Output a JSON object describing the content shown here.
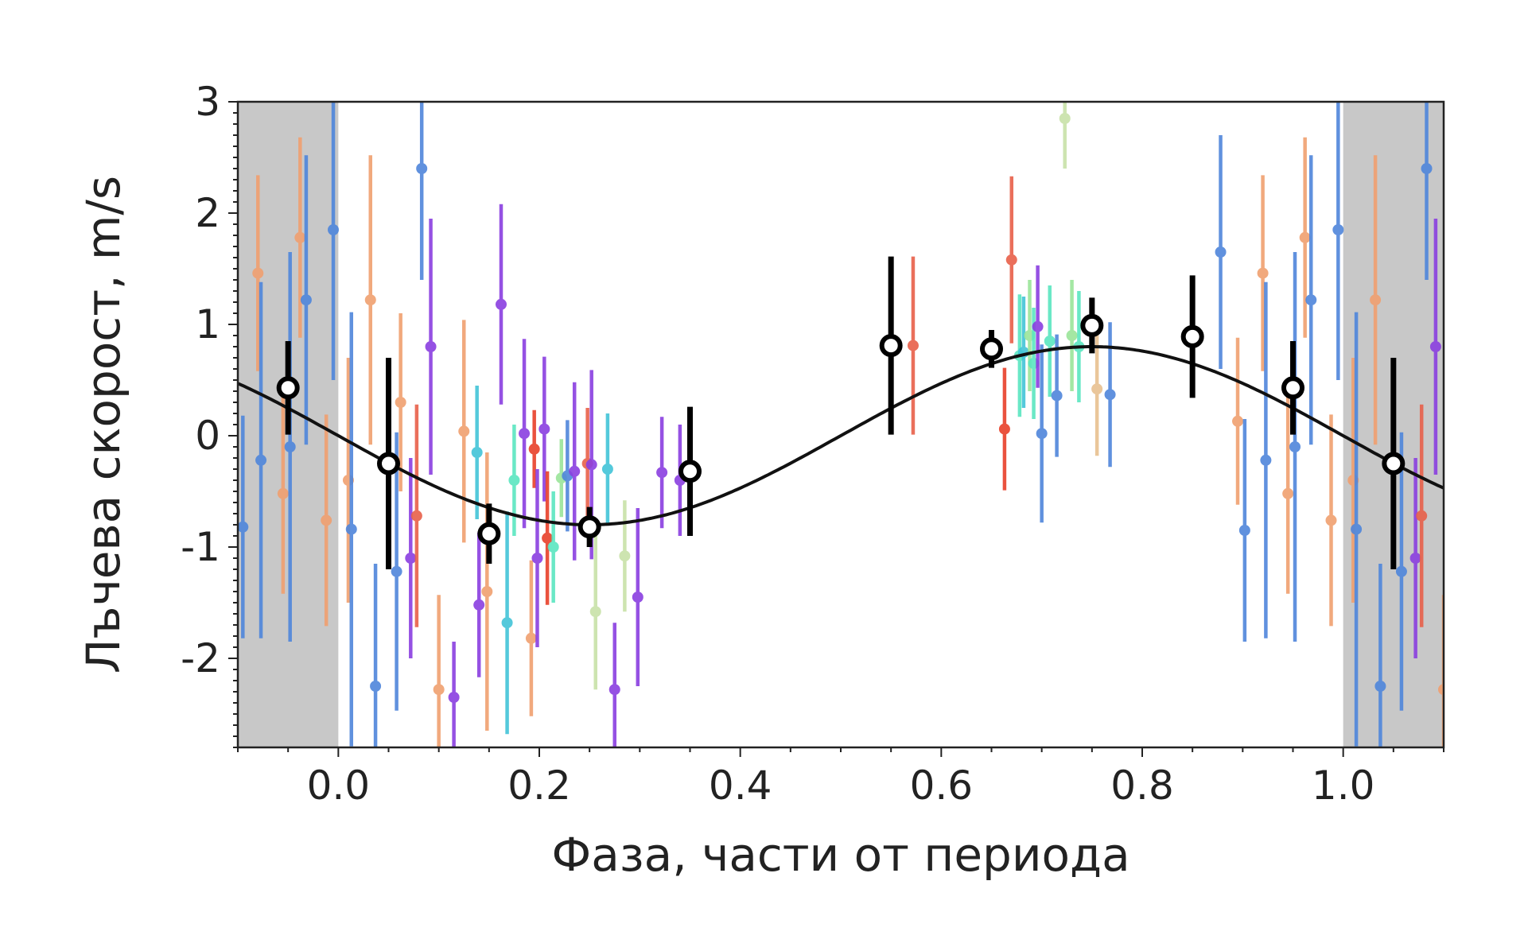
{
  "chart_data": {
    "type": "scatter",
    "xlabel": "Фаза, части от периода",
    "ylabel": "Лъчева скорост, m/s",
    "xlim": [
      -0.1,
      1.1
    ],
    "ylim": [
      -2.8,
      3
    ],
    "x_ticks": [
      "0.0",
      "0.2",
      "0.4",
      "0.6",
      "0.8",
      "1.0"
    ],
    "x_tick_values": [
      0.0,
      0.2,
      0.4,
      0.6,
      0.8,
      1.0
    ],
    "y_ticks": [
      "-2",
      "-1",
      "0",
      "1",
      "2",
      "3"
    ],
    "y_tick_values": [
      -2,
      -1,
      0,
      1,
      2,
      3
    ],
    "grid": false,
    "shaded_regions": [
      {
        "x_from": -0.1,
        "x_to": 0.0,
        "color": "#c8c8c8"
      },
      {
        "x_from": 1.0,
        "x_to": 1.1,
        "color": "#c8c8c8"
      }
    ],
    "model_curve": {
      "function": "sine",
      "amplitude": 0.8,
      "phase_of_minimum": 0.25,
      "offset": 0.0,
      "color": "#111111"
    },
    "binned_points": [
      {
        "x": -0.05,
        "y": 0.43,
        "err": 0.42
      },
      {
        "x": 0.05,
        "y": -0.25,
        "err": 0.95
      },
      {
        "x": 0.15,
        "y": -0.88,
        "err": 0.27
      },
      {
        "x": 0.25,
        "y": -0.82,
        "err": 0.18
      },
      {
        "x": 0.35,
        "y": -0.32,
        "err": 0.58
      },
      {
        "x": 0.55,
        "y": 0.81,
        "err": 0.8
      },
      {
        "x": 0.65,
        "y": 0.78,
        "err": 0.17
      },
      {
        "x": 0.75,
        "y": 0.99,
        "err": 0.25
      },
      {
        "x": 0.85,
        "y": 0.89,
        "err": 0.55
      },
      {
        "x": 0.95,
        "y": 0.43,
        "err": 0.42
      },
      {
        "x": 1.05,
        "y": -0.25,
        "err": 0.95
      }
    ],
    "raw_points": [
      {
        "x": -0.095,
        "y": -0.82,
        "err": 1.0,
        "color": "#4f86db"
      },
      {
        "x": -0.08,
        "y": 1.46,
        "err": 0.88,
        "color": "#f0a070"
      },
      {
        "x": -0.077,
        "y": -0.22,
        "err": 1.6,
        "color": "#4f86db"
      },
      {
        "x": -0.055,
        "y": -0.52,
        "err": 0.9,
        "color": "#f0a070"
      },
      {
        "x": -0.048,
        "y": -0.1,
        "err": 1.75,
        "color": "#4f86db"
      },
      {
        "x": -0.038,
        "y": 1.78,
        "err": 0.9,
        "color": "#f0a070"
      },
      {
        "x": -0.032,
        "y": 1.22,
        "err": 1.3,
        "color": "#4f86db"
      },
      {
        "x": -0.012,
        "y": -0.76,
        "err": 0.95,
        "color": "#f0a070"
      },
      {
        "x": -0.005,
        "y": 1.85,
        "err": 1.35,
        "color": "#4f86db"
      },
      {
        "x": 0.01,
        "y": -0.4,
        "err": 1.1,
        "color": "#f0a070"
      },
      {
        "x": 0.013,
        "y": -0.84,
        "err": 1.95,
        "color": "#4f86db"
      },
      {
        "x": 0.032,
        "y": 1.22,
        "err": 1.3,
        "color": "#f0a070"
      },
      {
        "x": 0.037,
        "y": -2.25,
        "err": 1.1,
        "color": "#4f86db"
      },
      {
        "x": 0.058,
        "y": -1.22,
        "err": 1.25,
        "color": "#4f86db"
      },
      {
        "x": 0.062,
        "y": 0.3,
        "err": 0.8,
        "color": "#f0a070"
      },
      {
        "x": 0.072,
        "y": -1.1,
        "err": 0.9,
        "color": "#8a3fe0"
      },
      {
        "x": 0.078,
        "y": -0.72,
        "err": 1.0,
        "color": "#e8604a"
      },
      {
        "x": 0.083,
        "y": 2.4,
        "err": 1.0,
        "color": "#4f86db"
      },
      {
        "x": 0.092,
        "y": 0.8,
        "err": 1.15,
        "color": "#8a3fe0"
      },
      {
        "x": 0.1,
        "y": -2.28,
        "err": 0.85,
        "color": "#f0a070"
      },
      {
        "x": 0.115,
        "y": -2.35,
        "err": 0.5,
        "color": "#8a3fe0"
      },
      {
        "x": 0.125,
        "y": 0.04,
        "err": 1.0,
        "color": "#f0a070"
      },
      {
        "x": 0.138,
        "y": -0.15,
        "err": 0.6,
        "color": "#42c4d8"
      },
      {
        "x": 0.14,
        "y": -1.52,
        "err": 0.65,
        "color": "#8a3fe0"
      },
      {
        "x": 0.148,
        "y": -1.4,
        "err": 1.25,
        "color": "#f0a070"
      },
      {
        "x": 0.162,
        "y": 1.18,
        "err": 0.9,
        "color": "#8a3fe0"
      },
      {
        "x": 0.168,
        "y": -1.68,
        "err": 1.0,
        "color": "#42c4d8"
      },
      {
        "x": 0.175,
        "y": -0.4,
        "err": 0.5,
        "color": "#5ae6c0"
      },
      {
        "x": 0.185,
        "y": 0.02,
        "err": 0.85,
        "color": "#8a3fe0"
      },
      {
        "x": 0.192,
        "y": -1.82,
        "err": 0.7,
        "color": "#f0a070"
      },
      {
        "x": 0.195,
        "y": -0.12,
        "err": 0.35,
        "color": "#e8402a"
      },
      {
        "x": 0.198,
        "y": -1.1,
        "err": 0.8,
        "color": "#8a3fe0"
      },
      {
        "x": 0.205,
        "y": 0.06,
        "err": 0.65,
        "color": "#8a3fe0"
      },
      {
        "x": 0.208,
        "y": -0.92,
        "err": 0.6,
        "color": "#e8402a"
      },
      {
        "x": 0.214,
        "y": -1.0,
        "err": 0.5,
        "color": "#5ae6c0"
      },
      {
        "x": 0.222,
        "y": -0.38,
        "err": 0.35,
        "color": "#9be59a"
      },
      {
        "x": 0.228,
        "y": -0.36,
        "err": 0.5,
        "color": "#4f86db"
      },
      {
        "x": 0.235,
        "y": -0.32,
        "err": 0.8,
        "color": "#8a3fe0"
      },
      {
        "x": 0.248,
        "y": -0.25,
        "err": 0.5,
        "color": "#e8604a"
      },
      {
        "x": 0.252,
        "y": -0.26,
        "err": 0.85,
        "color": "#8a3fe0"
      },
      {
        "x": 0.256,
        "y": -1.58,
        "err": 0.7,
        "color": "#c8e2a8"
      },
      {
        "x": 0.268,
        "y": -0.3,
        "err": 0.5,
        "color": "#42c4d8"
      },
      {
        "x": 0.275,
        "y": -2.28,
        "err": 0.6,
        "color": "#8a3fe0"
      },
      {
        "x": 0.285,
        "y": -1.08,
        "err": 0.5,
        "color": "#c8e2a8"
      },
      {
        "x": 0.298,
        "y": -1.45,
        "err": 0.8,
        "color": "#8a3fe0"
      },
      {
        "x": 0.322,
        "y": -0.33,
        "err": 0.5,
        "color": "#8a3fe0"
      },
      {
        "x": 0.34,
        "y": -0.4,
        "err": 0.5,
        "color": "#8a3fe0"
      },
      {
        "x": 0.572,
        "y": 0.81,
        "err": 0.8,
        "color": "#e8604a"
      },
      {
        "x": 0.663,
        "y": 0.06,
        "err": 0.55,
        "color": "#e8402a"
      },
      {
        "x": 0.67,
        "y": 1.58,
        "err": 0.75,
        "color": "#e8604a"
      },
      {
        "x": 0.678,
        "y": 0.72,
        "err": 0.55,
        "color": "#5ae6c0"
      },
      {
        "x": 0.682,
        "y": 0.75,
        "err": 0.5,
        "color": "#42c4d8"
      },
      {
        "x": 0.688,
        "y": 0.9,
        "err": 0.5,
        "color": "#9be59a"
      },
      {
        "x": 0.692,
        "y": 0.65,
        "err": 0.5,
        "color": "#5ae6c0"
      },
      {
        "x": 0.696,
        "y": 0.98,
        "err": 0.55,
        "color": "#8a3fe0"
      },
      {
        "x": 0.7,
        "y": 0.02,
        "err": 0.8,
        "color": "#4f86db"
      },
      {
        "x": 0.708,
        "y": 0.85,
        "err": 0.5,
        "color": "#5ae6c0"
      },
      {
        "x": 0.715,
        "y": 0.36,
        "err": 0.55,
        "color": "#4f86db"
      },
      {
        "x": 0.723,
        "y": 2.85,
        "err": 0.45,
        "color": "#c8e2a8"
      },
      {
        "x": 0.73,
        "y": 0.9,
        "err": 0.5,
        "color": "#9be59a"
      },
      {
        "x": 0.737,
        "y": 0.8,
        "err": 0.5,
        "color": "#5ae6c0"
      },
      {
        "x": 0.755,
        "y": 0.42,
        "err": 0.6,
        "color": "#e8c090"
      },
      {
        "x": 0.768,
        "y": 0.37,
        "err": 0.65,
        "color": "#4f86db"
      },
      {
        "x": 0.878,
        "y": 1.65,
        "err": 1.05,
        "color": "#4f86db"
      },
      {
        "x": 0.895,
        "y": 0.13,
        "err": 0.75,
        "color": "#f0a070"
      },
      {
        "x": 0.902,
        "y": -0.85,
        "err": 1.0,
        "color": "#4f86db"
      },
      {
        "x": 0.92,
        "y": 1.46,
        "err": 0.88,
        "color": "#f0a070"
      },
      {
        "x": 0.923,
        "y": -0.22,
        "err": 1.6,
        "color": "#4f86db"
      },
      {
        "x": 0.945,
        "y": -0.52,
        "err": 0.9,
        "color": "#f0a070"
      },
      {
        "x": 0.952,
        "y": -0.1,
        "err": 1.75,
        "color": "#4f86db"
      },
      {
        "x": 0.962,
        "y": 1.78,
        "err": 0.9,
        "color": "#f0a070"
      },
      {
        "x": 0.968,
        "y": 1.22,
        "err": 1.3,
        "color": "#4f86db"
      },
      {
        "x": 0.988,
        "y": -0.76,
        "err": 0.95,
        "color": "#f0a070"
      },
      {
        "x": 0.995,
        "y": 1.85,
        "err": 1.35,
        "color": "#4f86db"
      },
      {
        "x": 1.01,
        "y": -0.4,
        "err": 1.1,
        "color": "#f0a070"
      },
      {
        "x": 1.013,
        "y": -0.84,
        "err": 1.95,
        "color": "#4f86db"
      },
      {
        "x": 1.032,
        "y": 1.22,
        "err": 1.3,
        "color": "#f0a070"
      },
      {
        "x": 1.037,
        "y": -2.25,
        "err": 1.1,
        "color": "#4f86db"
      },
      {
        "x": 1.058,
        "y": -1.22,
        "err": 1.25,
        "color": "#4f86db"
      },
      {
        "x": 1.072,
        "y": -1.1,
        "err": 0.9,
        "color": "#8a3fe0"
      },
      {
        "x": 1.078,
        "y": -0.72,
        "err": 1.0,
        "color": "#e8604a"
      },
      {
        "x": 1.083,
        "y": 2.4,
        "err": 1.0,
        "color": "#4f86db"
      },
      {
        "x": 1.092,
        "y": 0.8,
        "err": 1.15,
        "color": "#8a3fe0"
      },
      {
        "x": 1.1,
        "y": -2.28,
        "err": 0.85,
        "color": "#f0a070"
      }
    ]
  }
}
